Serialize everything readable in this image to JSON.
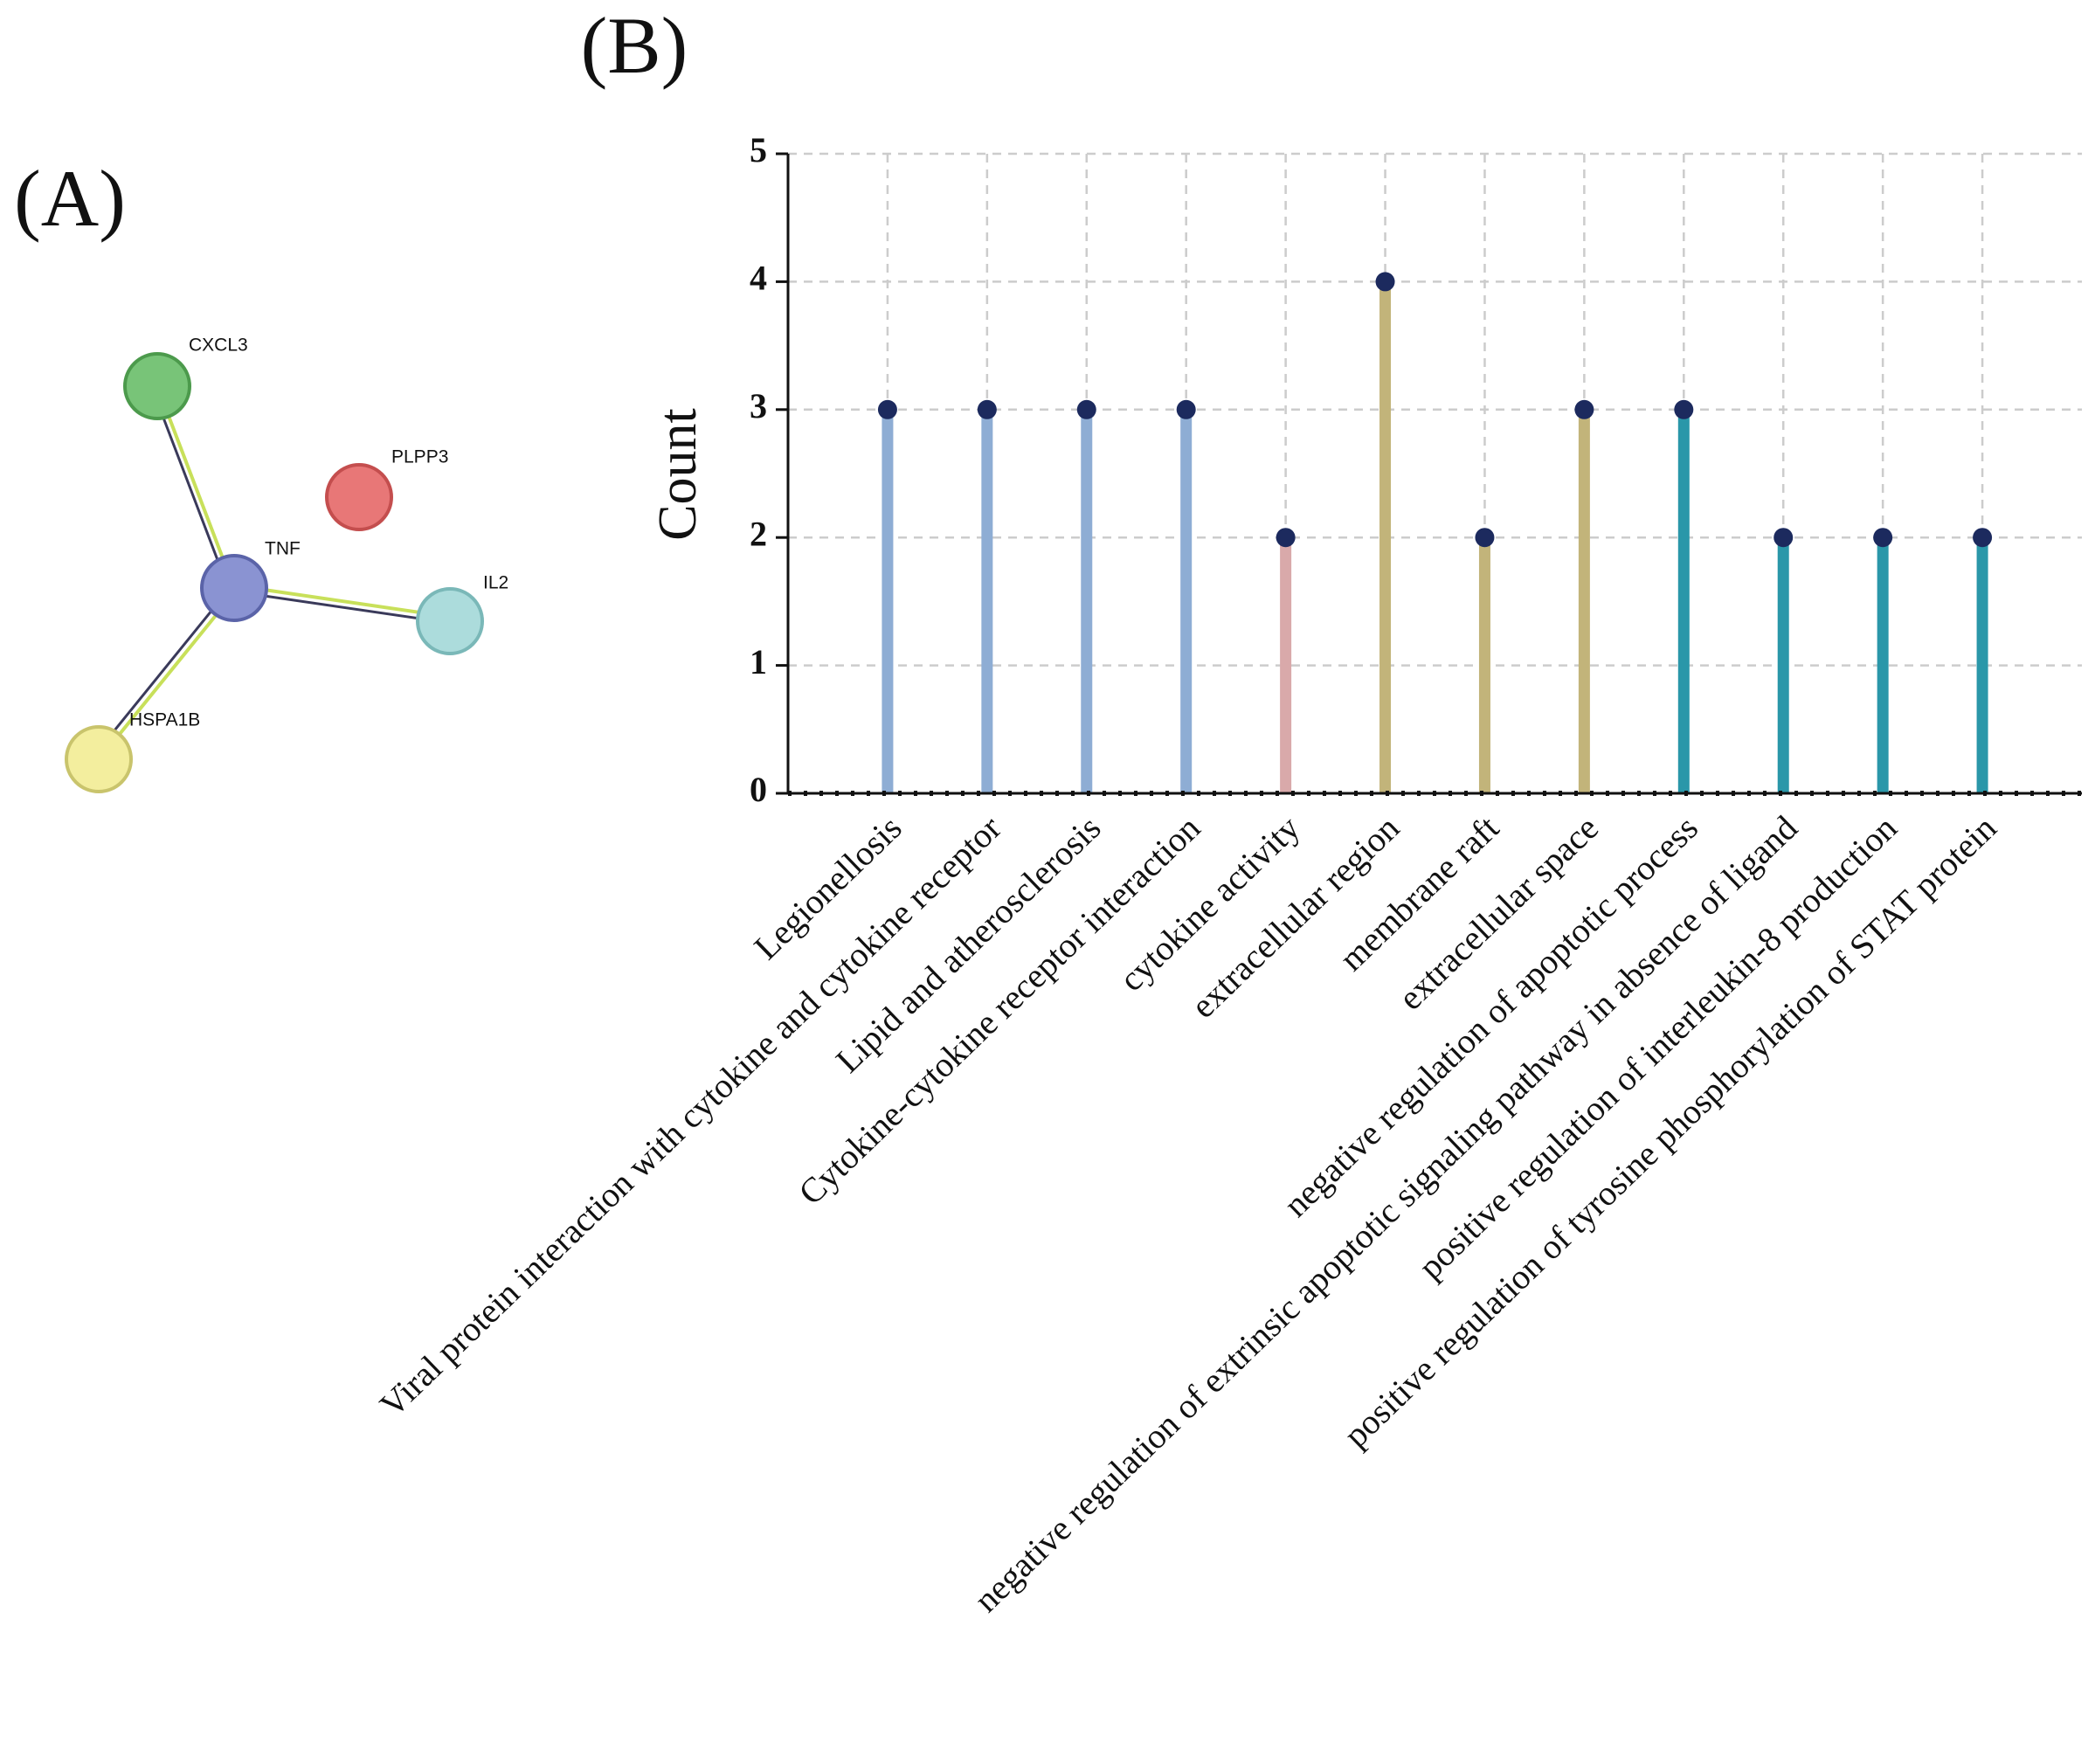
{
  "network": {
    "label": "(A)",
    "nodes": [
      {
        "label": "CXCL3"
      },
      {
        "label": "PLPP3"
      },
      {
        "label": "TNF"
      },
      {
        "label": "IL2"
      },
      {
        "label": "HSPA1B"
      }
    ]
  },
  "chart_data": {
    "type": "lollipop",
    "label": "(B)",
    "ylabel": "Count",
    "categories": [
      "Legionellosis",
      "Viral protein interaction with cytokine and cytokine receptor",
      "Lipid and atherosclerosis",
      "Cytokine-cytokine receptor interaction",
      "cytokine activity",
      "extracellular region",
      "membrane raft",
      "extracellular space",
      "negative regulation of apoptotic process",
      "negative regulation of extrinsic apoptotic signaling pathway in absence of ligand",
      "positive regulation of interleukin-8 production",
      "positive regulation of tyrosine phosphorylation of STAT protein"
    ],
    "values": [
      3,
      3,
      3,
      3,
      2,
      4,
      2,
      3,
      3,
      2,
      2,
      2
    ],
    "colors": [
      "#8eadd4",
      "#8eadd4",
      "#8eadd4",
      "#8eadd4",
      "#d9a9aa",
      "#c2b47a",
      "#c2b47a",
      "#c2b47a",
      "#2a97a9",
      "#2a97a9",
      "#2a97a9",
      "#2a97a9"
    ],
    "marker_color": "#1c2a5e",
    "ylim": [
      0,
      5
    ],
    "yticks": [
      0,
      1,
      2,
      3,
      4,
      5
    ],
    "grid": true
  }
}
